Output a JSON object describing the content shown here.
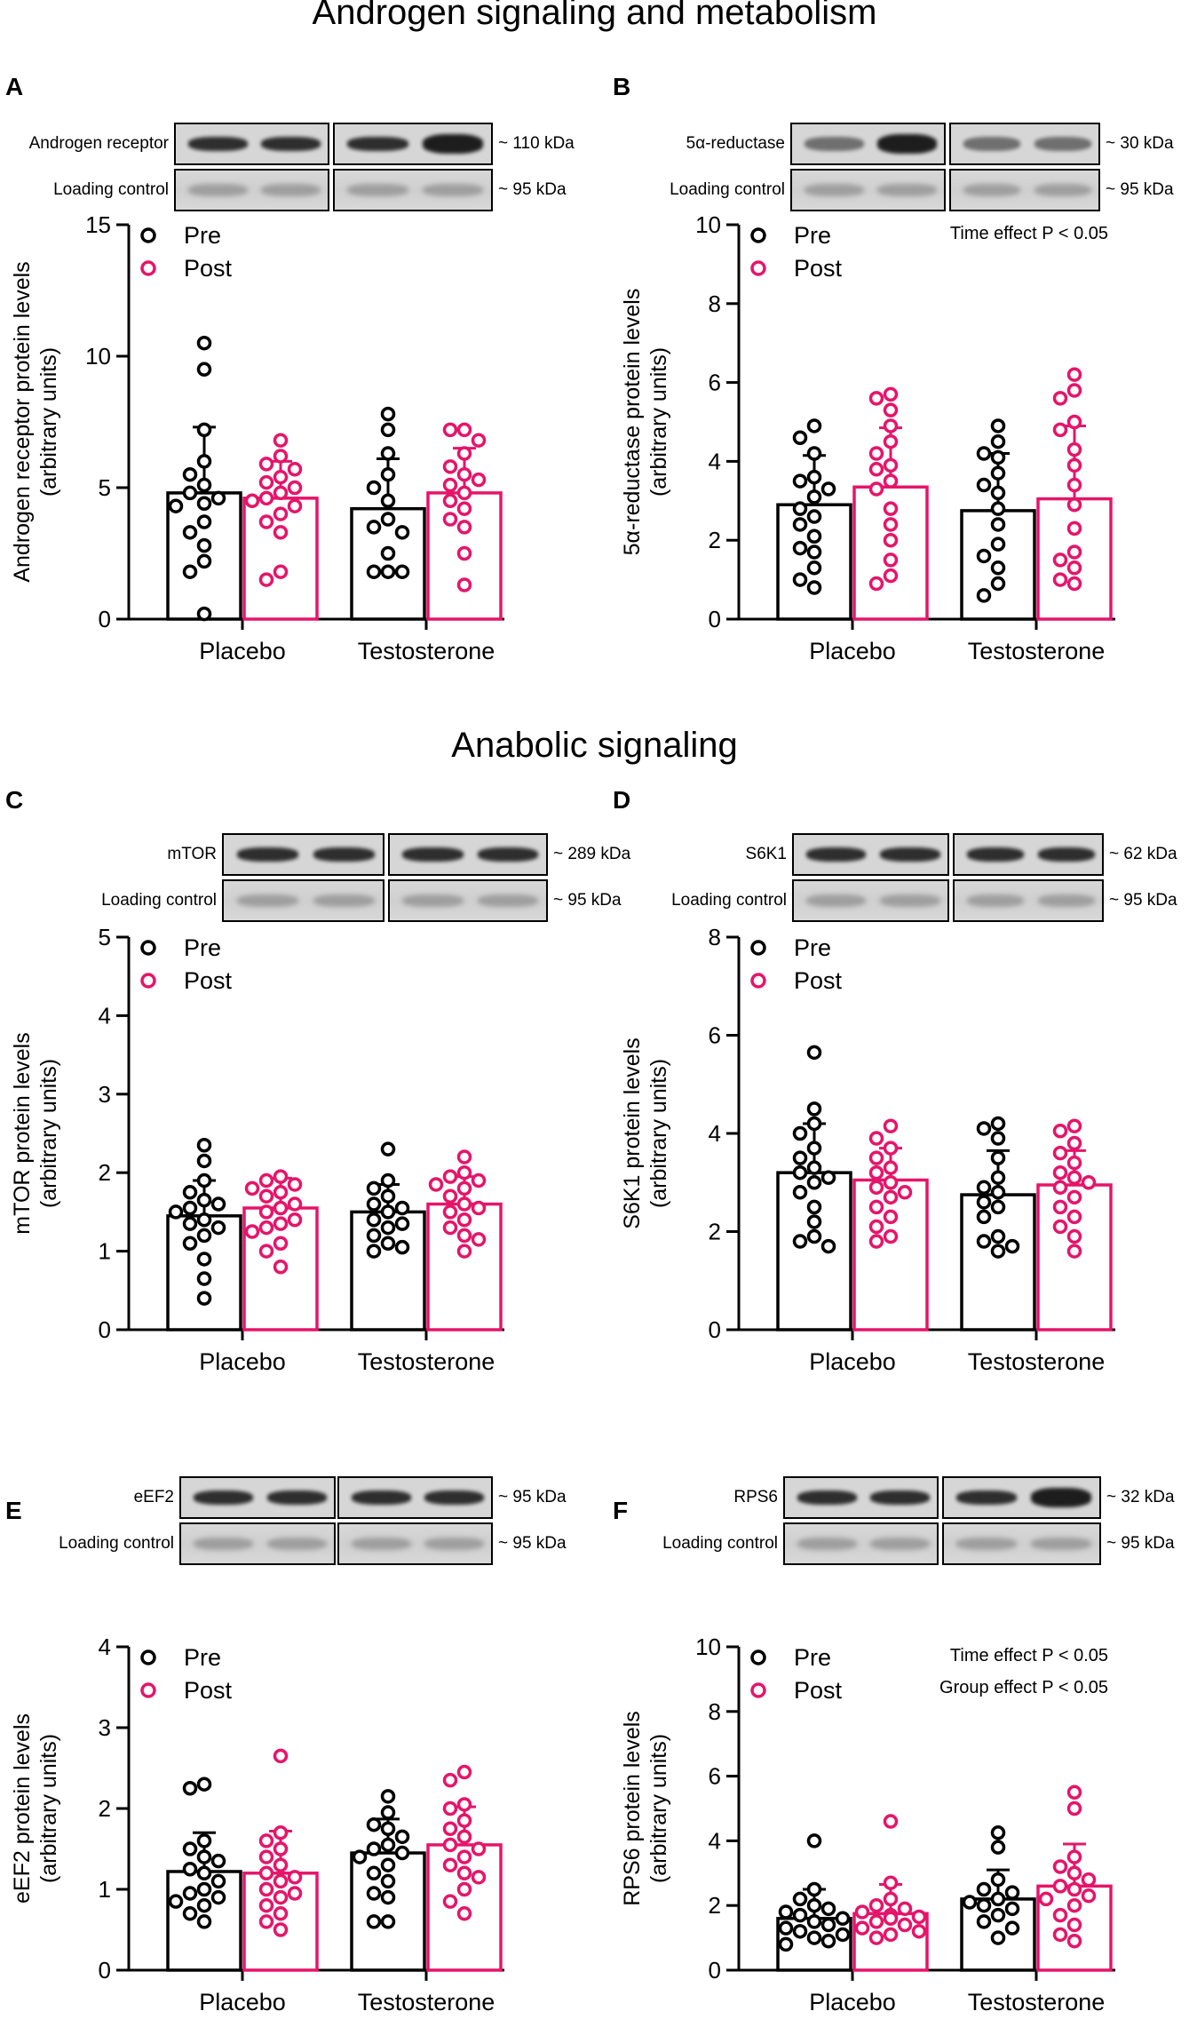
{
  "section_titles": [
    "Androgen signaling and metabolism",
    "Anabolic signaling"
  ],
  "colors": {
    "pre": "#000000",
    "post": "#e5156a"
  },
  "blot_labels": {
    "loading": "Loading control",
    "loading_size": "~ 95 kDa"
  },
  "panels": [
    {
      "letter": "A",
      "protein": "Androgen receptor",
      "size": "~ 110 kDa"
    },
    {
      "letter": "B",
      "protein": "5α-reductase",
      "size": "~ 30 kDa"
    },
    {
      "letter": "C",
      "protein": "mTOR",
      "size": "~ 289 kDa"
    },
    {
      "letter": "D",
      "protein": "S6K1",
      "size": "~ 62 kDa"
    },
    {
      "letter": "E",
      "protein": "eEF2",
      "size": "~ 95 kDa"
    },
    {
      "letter": "F",
      "protein": "RPS6",
      "size": "~ 32 kDa"
    }
  ],
  "chart_data": [
    {
      "type": "bar",
      "panel": "A",
      "ylabel": [
        "Androgen receptor protein levels",
        "(arbitrary units)"
      ],
      "ylim": [
        0,
        15
      ],
      "yticks": [
        0,
        5,
        10,
        15
      ],
      "categories": [
        "Placebo",
        "Testosterone"
      ],
      "annotations": [],
      "legend": [
        "Pre",
        "Post"
      ],
      "series": [
        {
          "name": "Pre",
          "means": [
            4.8,
            4.2
          ],
          "sd": [
            2.5,
            1.9
          ],
          "points": [
            [
              10.5,
              9.5,
              7.2,
              6.0,
              5.5,
              5.1,
              4.8,
              4.6,
              4.4,
              4.3,
              3.7,
              3.3,
              2.8,
              2.2,
              1.8,
              0.2
            ],
            [
              7.8,
              7.2,
              6.3,
              5.5,
              5.0,
              4.5,
              3.8,
              3.5,
              3.3,
              2.5,
              1.8,
              1.8,
              1.8
            ]
          ]
        },
        {
          "name": "Post",
          "means": [
            4.6,
            4.8
          ],
          "sd": [
            1.4,
            1.7
          ],
          "points": [
            [
              6.8,
              6.2,
              5.9,
              5.7,
              5.4,
              5.2,
              5.0,
              4.8,
              4.6,
              4.5,
              4.3,
              4.0,
              3.7,
              3.3,
              1.8,
              1.5
            ],
            [
              7.2,
              7.2,
              6.8,
              6.3,
              5.8,
              5.5,
              5.3,
              5.1,
              4.8,
              4.5,
              4.2,
              3.8,
              3.5,
              2.5,
              1.3
            ]
          ]
        }
      ]
    },
    {
      "type": "bar",
      "panel": "B",
      "ylabel": [
        "5α-reductase protein levels",
        "(arbitrary units)"
      ],
      "ylim": [
        0,
        10
      ],
      "yticks": [
        0,
        2,
        4,
        6,
        8,
        10
      ],
      "categories": [
        "Placebo",
        "Testosterone"
      ],
      "annotations": [
        "Time effect P < 0.05"
      ],
      "legend": [
        "Pre",
        "Post"
      ],
      "series": [
        {
          "name": "Pre",
          "means": [
            2.9,
            2.75
          ],
          "sd": [
            1.25,
            1.45
          ],
          "points": [
            [
              4.9,
              4.6,
              4.2,
              3.6,
              3.5,
              3.3,
              3.1,
              2.8,
              2.6,
              2.4,
              2.1,
              1.8,
              1.7,
              1.3,
              1.0,
              0.8
            ],
            [
              4.9,
              4.5,
              4.2,
              4.1,
              3.7,
              3.4,
              3.2,
              2.8,
              2.4,
              1.9,
              1.6,
              1.3,
              0.9,
              0.6
            ]
          ]
        },
        {
          "name": "Post",
          "means": [
            3.35,
            3.05
          ],
          "sd": [
            1.5,
            1.85
          ],
          "points": [
            [
              5.7,
              5.6,
              5.3,
              4.9,
              4.5,
              4.2,
              3.9,
              3.8,
              3.5,
              3.3,
              2.8,
              2.4,
              2.0,
              1.5,
              1.1,
              0.9
            ],
            [
              6.2,
              5.8,
              5.6,
              5.0,
              4.8,
              4.3,
              3.9,
              3.4,
              2.9,
              2.3,
              1.7,
              1.5,
              1.3,
              1.0,
              0.9
            ]
          ]
        }
      ]
    },
    {
      "type": "bar",
      "panel": "C",
      "ylabel": [
        "mTOR protein levels",
        "(arbitrary units)"
      ],
      "ylim": [
        0,
        5
      ],
      "yticks": [
        0,
        1,
        2,
        3,
        4,
        5
      ],
      "categories": [
        "Placebo",
        "Testosterone"
      ],
      "annotations": [],
      "legend": [
        "Pre",
        "Post"
      ],
      "series": [
        {
          "name": "Pre",
          "means": [
            1.45,
            1.5
          ],
          "sd": [
            0.45,
            0.35
          ],
          "points": [
            [
              2.35,
              2.15,
              1.9,
              1.75,
              1.65,
              1.6,
              1.55,
              1.5,
              1.4,
              1.35,
              1.3,
              1.2,
              1.1,
              0.9,
              0.65,
              0.4
            ],
            [
              2.3,
              1.9,
              1.8,
              1.7,
              1.6,
              1.55,
              1.5,
              1.4,
              1.35,
              1.3,
              1.2,
              1.1,
              1.05,
              1.0
            ]
          ]
        },
        {
          "name": "Post",
          "means": [
            1.55,
            1.6
          ],
          "sd": [
            0.38,
            0.35
          ],
          "points": [
            [
              1.95,
              1.9,
              1.85,
              1.8,
              1.75,
              1.7,
              1.6,
              1.55,
              1.5,
              1.4,
              1.35,
              1.3,
              1.25,
              1.1,
              1.0,
              0.8
            ],
            [
              2.2,
              2.0,
              1.95,
              1.9,
              1.85,
              1.8,
              1.7,
              1.6,
              1.55,
              1.5,
              1.4,
              1.3,
              1.2,
              1.15,
              1.0
            ]
          ]
        }
      ]
    },
    {
      "type": "bar",
      "panel": "D",
      "ylabel": [
        "S6K1 protein levels",
        "(arbitrary units)"
      ],
      "ylim": [
        0,
        8
      ],
      "yticks": [
        0,
        2,
        4,
        6,
        8
      ],
      "categories": [
        "Placebo",
        "Testosterone"
      ],
      "annotations": [],
      "legend": [
        "Pre",
        "Post"
      ],
      "series": [
        {
          "name": "Pre",
          "means": [
            3.2,
            2.75
          ],
          "sd": [
            1.0,
            0.9
          ],
          "points": [
            [
              5.65,
              4.5,
              4.2,
              4.0,
              3.7,
              3.5,
              3.3,
              3.2,
              3.1,
              3.0,
              2.8,
              2.5,
              2.2,
              1.9,
              1.8,
              1.7
            ],
            [
              4.2,
              4.1,
              3.9,
              3.5,
              3.1,
              2.9,
              2.8,
              2.6,
              2.5,
              2.3,
              1.9,
              1.8,
              1.7,
              1.6
            ]
          ]
        },
        {
          "name": "Post",
          "means": [
            3.05,
            2.95
          ],
          "sd": [
            0.65,
            0.7
          ],
          "points": [
            [
              4.15,
              3.9,
              3.7,
              3.5,
              3.3,
              3.2,
              3.0,
              2.9,
              2.8,
              2.7,
              2.5,
              2.3,
              2.1,
              1.9,
              1.8
            ],
            [
              4.15,
              4.05,
              3.8,
              3.6,
              3.4,
              3.2,
              3.1,
              3.0,
              2.9,
              2.7,
              2.5,
              2.3,
              2.1,
              1.9,
              1.6
            ]
          ]
        }
      ]
    },
    {
      "type": "bar",
      "panel": "E",
      "ylabel": [
        "eEF2 protein levels",
        "(arbitrary units)"
      ],
      "ylim": [
        0,
        4
      ],
      "yticks": [
        0,
        1,
        2,
        3,
        4
      ],
      "categories": [
        "Placebo",
        "Testosterone"
      ],
      "annotations": [],
      "legend": [
        "Pre",
        "Post"
      ],
      "series": [
        {
          "name": "Pre",
          "means": [
            1.22,
            1.45
          ],
          "sd": [
            0.48,
            0.42
          ],
          "points": [
            [
              2.3,
              2.25,
              1.6,
              1.5,
              1.4,
              1.35,
              1.25,
              1.2,
              1.1,
              1.0,
              0.95,
              0.9,
              0.85,
              0.8,
              0.7,
              0.6
            ],
            [
              2.15,
              1.95,
              1.8,
              1.75,
              1.65,
              1.55,
              1.5,
              1.45,
              1.4,
              1.3,
              1.2,
              1.1,
              0.95,
              0.9,
              0.6,
              0.6
            ]
          ]
        },
        {
          "name": "Post",
          "means": [
            1.2,
            1.55
          ],
          "sd": [
            0.52,
            0.47
          ],
          "points": [
            [
              2.65,
              1.7,
              1.6,
              1.5,
              1.4,
              1.3,
              1.2,
              1.15,
              1.1,
              1.0,
              0.95,
              0.9,
              0.8,
              0.7,
              0.6,
              0.5
            ],
            [
              2.45,
              2.35,
              2.05,
              2.0,
              1.85,
              1.75,
              1.65,
              1.55,
              1.5,
              1.4,
              1.3,
              1.2,
              1.15,
              1.0,
              0.85,
              0.7
            ]
          ]
        }
      ]
    },
    {
      "type": "bar",
      "panel": "F",
      "ylabel": [
        "RPS6 protein levels",
        "(arbitrary units)"
      ],
      "ylim": [
        0,
        10
      ],
      "yticks": [
        0,
        2,
        4,
        6,
        8,
        10
      ],
      "categories": [
        "Placebo",
        "Testosterone"
      ],
      "annotations": [
        "Time effect P < 0.05",
        "Group effect P < 0.05"
      ],
      "legend": [
        "Pre",
        "Post"
      ],
      "series": [
        {
          "name": "Pre",
          "means": [
            1.6,
            2.2
          ],
          "sd": [
            0.9,
            0.9
          ],
          "points": [
            [
              4.0,
              2.5,
              2.2,
              2.0,
              1.9,
              1.8,
              1.7,
              1.6,
              1.5,
              1.4,
              1.3,
              1.2,
              1.1,
              1.0,
              0.9,
              0.8
            ],
            [
              4.25,
              3.8,
              2.8,
              2.5,
              2.4,
              2.2,
              2.1,
              2.0,
              1.9,
              1.7,
              1.5,
              1.3,
              1.0
            ]
          ]
        },
        {
          "name": "Post",
          "means": [
            1.75,
            2.6
          ],
          "sd": [
            0.9,
            1.3
          ],
          "points": [
            [
              4.6,
              2.7,
              2.2,
              2.0,
              1.9,
              1.8,
              1.7,
              1.65,
              1.6,
              1.5,
              1.4,
              1.3,
              1.2,
              1.1,
              1.0
            ],
            [
              5.5,
              5.0,
              3.5,
              3.2,
              3.0,
              2.8,
              2.6,
              2.5,
              2.3,
              2.2,
              2.0,
              1.7,
              1.4,
              1.1,
              0.9
            ]
          ]
        }
      ]
    }
  ]
}
